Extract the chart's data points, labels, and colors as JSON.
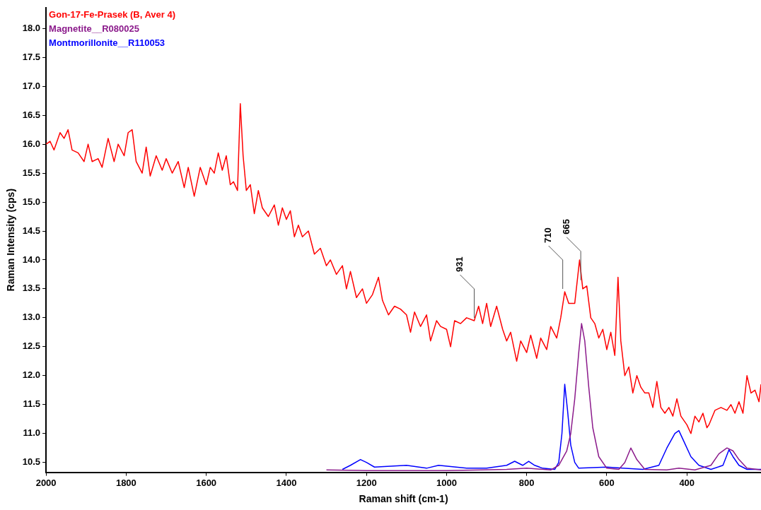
{
  "chart_data": {
    "type": "line",
    "xlabel": "Raman shift (cm-1)",
    "ylabel": "Raman Intensity (cps)",
    "xlim": [
      2000,
      215
    ],
    "xticks": [
      2000,
      1800,
      1600,
      1400,
      1200,
      1000,
      800,
      600,
      400
    ],
    "ylim": [
      10.33,
      18.36
    ],
    "yticks": [
      {
        "value": 10.5,
        "label": "10.5"
      },
      {
        "value": 11,
        "label": "11.0"
      },
      {
        "value": 11.5,
        "label": "11.5"
      },
      {
        "value": 12,
        "label": "12.0"
      },
      {
        "value": 12.5,
        "label": "12.5"
      },
      {
        "value": 13,
        "label": "13.0"
      },
      {
        "value": 13.5,
        "label": "13.5"
      },
      {
        "value": 14,
        "label": "14.0"
      },
      {
        "value": 14.5,
        "label": "14.5"
      },
      {
        "value": 15,
        "label": "15.0"
      },
      {
        "value": 15.5,
        "label": "15.5"
      },
      {
        "value": 16,
        "label": "16.0"
      },
      {
        "value": 16.5,
        "label": "16.5"
      },
      {
        "value": 17,
        "label": "17.0"
      },
      {
        "value": 17.5,
        "label": "17.5"
      },
      {
        "value": 18,
        "label": "18.0"
      }
    ],
    "grid": false,
    "legend": "top left",
    "marker": "none",
    "line_style": "solid",
    "annotations": [
      {
        "text": "931",
        "x": 931,
        "y": 12.95
      },
      {
        "text": "710",
        "x": 710,
        "y": 13.45
      },
      {
        "text": "665",
        "x": 665,
        "y": 13.6
      }
    ],
    "series": [
      {
        "name": "Gon-17-Fe-Prasek (B, Aver 4)",
        "color": "#ff0000",
        "x": [
          2000,
          1990,
          1980,
          1965,
          1955,
          1945,
          1935,
          1920,
          1905,
          1895,
          1885,
          1870,
          1860,
          1845,
          1830,
          1820,
          1805,
          1795,
          1785,
          1775,
          1760,
          1750,
          1740,
          1725,
          1710,
          1700,
          1685,
          1670,
          1655,
          1645,
          1630,
          1615,
          1600,
          1590,
          1580,
          1570,
          1560,
          1550,
          1540,
          1532,
          1522,
          1515,
          1508,
          1500,
          1490,
          1480,
          1470,
          1460,
          1445,
          1430,
          1420,
          1410,
          1400,
          1390,
          1380,
          1370,
          1360,
          1345,
          1330,
          1315,
          1300,
          1290,
          1275,
          1260,
          1250,
          1240,
          1225,
          1210,
          1200,
          1185,
          1170,
          1160,
          1145,
          1130,
          1115,
          1100,
          1090,
          1080,
          1065,
          1050,
          1040,
          1025,
          1015,
          1000,
          990,
          980,
          965,
          950,
          931,
          920,
          910,
          900,
          890,
          875,
          860,
          850,
          840,
          825,
          815,
          800,
          790,
          775,
          765,
          750,
          740,
          725,
          715,
          705,
          695,
          680,
          668,
          660,
          650,
          640,
          630,
          620,
          610,
          600,
          590,
          580,
          572,
          565,
          555,
          545,
          535,
          525,
          515,
          505,
          495,
          485,
          475,
          465,
          455,
          445,
          435,
          425,
          415,
          400,
          390,
          380,
          370,
          360,
          350,
          345,
          330,
          315,
          300,
          290,
          280,
          270,
          260,
          250,
          240,
          230,
          220,
          215
        ],
        "values": [
          16.0,
          16.05,
          15.9,
          16.2,
          16.1,
          16.25,
          15.9,
          15.85,
          15.7,
          16.0,
          15.7,
          15.75,
          15.6,
          16.1,
          15.7,
          16.0,
          15.8,
          16.2,
          16.25,
          15.7,
          15.5,
          15.95,
          15.45,
          15.8,
          15.55,
          15.75,
          15.5,
          15.7,
          15.25,
          15.6,
          15.1,
          15.6,
          15.3,
          15.6,
          15.5,
          15.85,
          15.55,
          15.8,
          15.3,
          15.35,
          15.2,
          16.7,
          15.8,
          15.2,
          15.3,
          14.8,
          15.2,
          14.9,
          14.75,
          14.95,
          14.6,
          14.9,
          14.7,
          14.85,
          14.4,
          14.6,
          14.4,
          14.5,
          14.1,
          14.2,
          13.9,
          14.0,
          13.75,
          13.9,
          13.5,
          13.8,
          13.35,
          13.5,
          13.25,
          13.4,
          13.7,
          13.3,
          13.05,
          13.2,
          13.15,
          13.05,
          12.75,
          13.1,
          12.85,
          13.05,
          12.6,
          12.95,
          12.85,
          12.8,
          12.5,
          12.95,
          12.9,
          13.0,
          12.95,
          13.2,
          12.9,
          13.25,
          12.85,
          13.2,
          12.8,
          12.6,
          12.75,
          12.25,
          12.6,
          12.4,
          12.7,
          12.3,
          12.65,
          12.45,
          12.85,
          12.65,
          13.0,
          13.45,
          13.25,
          13.25,
          14.0,
          13.5,
          13.55,
          13.0,
          12.9,
          12.65,
          12.8,
          12.45,
          12.75,
          12.35,
          13.7,
          12.6,
          12.0,
          12.15,
          11.7,
          12.0,
          11.8,
          11.7,
          11.7,
          11.45,
          11.9,
          11.45,
          11.35,
          11.45,
          11.3,
          11.6,
          11.3,
          11.15,
          11.0,
          11.3,
          11.2,
          11.35,
          11.1,
          11.15,
          11.4,
          11.45,
          11.4,
          11.5,
          11.35,
          11.55,
          11.35,
          12.0,
          11.7,
          11.75,
          11.55,
          11.85
        ]
      },
      {
        "name": "Magnetite__R080025",
        "color": "#8b1a8b",
        "x": [
          1300,
          1200,
          1000,
          850,
          800,
          740,
          720,
          700,
          690,
          680,
          670,
          663,
          655,
          645,
          635,
          620,
          600,
          570,
          555,
          540,
          525,
          505,
          450,
          420,
          380,
          340,
          320,
          300,
          285,
          270,
          250,
          215
        ],
        "values": [
          10.37,
          10.36,
          10.36,
          10.38,
          10.4,
          10.37,
          10.45,
          10.7,
          11.0,
          11.6,
          12.4,
          12.9,
          12.6,
          11.8,
          11.1,
          10.6,
          10.4,
          10.38,
          10.5,
          10.75,
          10.55,
          10.38,
          10.37,
          10.4,
          10.37,
          10.45,
          10.65,
          10.75,
          10.7,
          10.55,
          10.4,
          10.37
        ]
      },
      {
        "name": "Montmorillonite__R110053",
        "color": "#0000ff",
        "x": [
          1260,
          1240,
          1215,
          1200,
          1180,
          1100,
          1050,
          1020,
          950,
          900,
          850,
          830,
          810,
          795,
          780,
          760,
          730,
          720,
          712,
          705,
          698,
          690,
          680,
          670,
          600,
          560,
          510,
          470,
          450,
          430,
          420,
          410,
          390,
          370,
          340,
          310,
          295,
          285,
          270,
          250,
          215
        ],
        "values": [
          10.38,
          10.45,
          10.55,
          10.5,
          10.42,
          10.45,
          10.4,
          10.45,
          10.4,
          10.4,
          10.45,
          10.52,
          10.45,
          10.52,
          10.45,
          10.4,
          10.38,
          10.5,
          11.0,
          11.85,
          11.4,
          10.8,
          10.5,
          10.4,
          10.42,
          10.4,
          10.38,
          10.45,
          10.75,
          11.0,
          11.05,
          10.9,
          10.6,
          10.45,
          10.38,
          10.45,
          10.72,
          10.6,
          10.45,
          10.38,
          10.38
        ]
      }
    ]
  }
}
